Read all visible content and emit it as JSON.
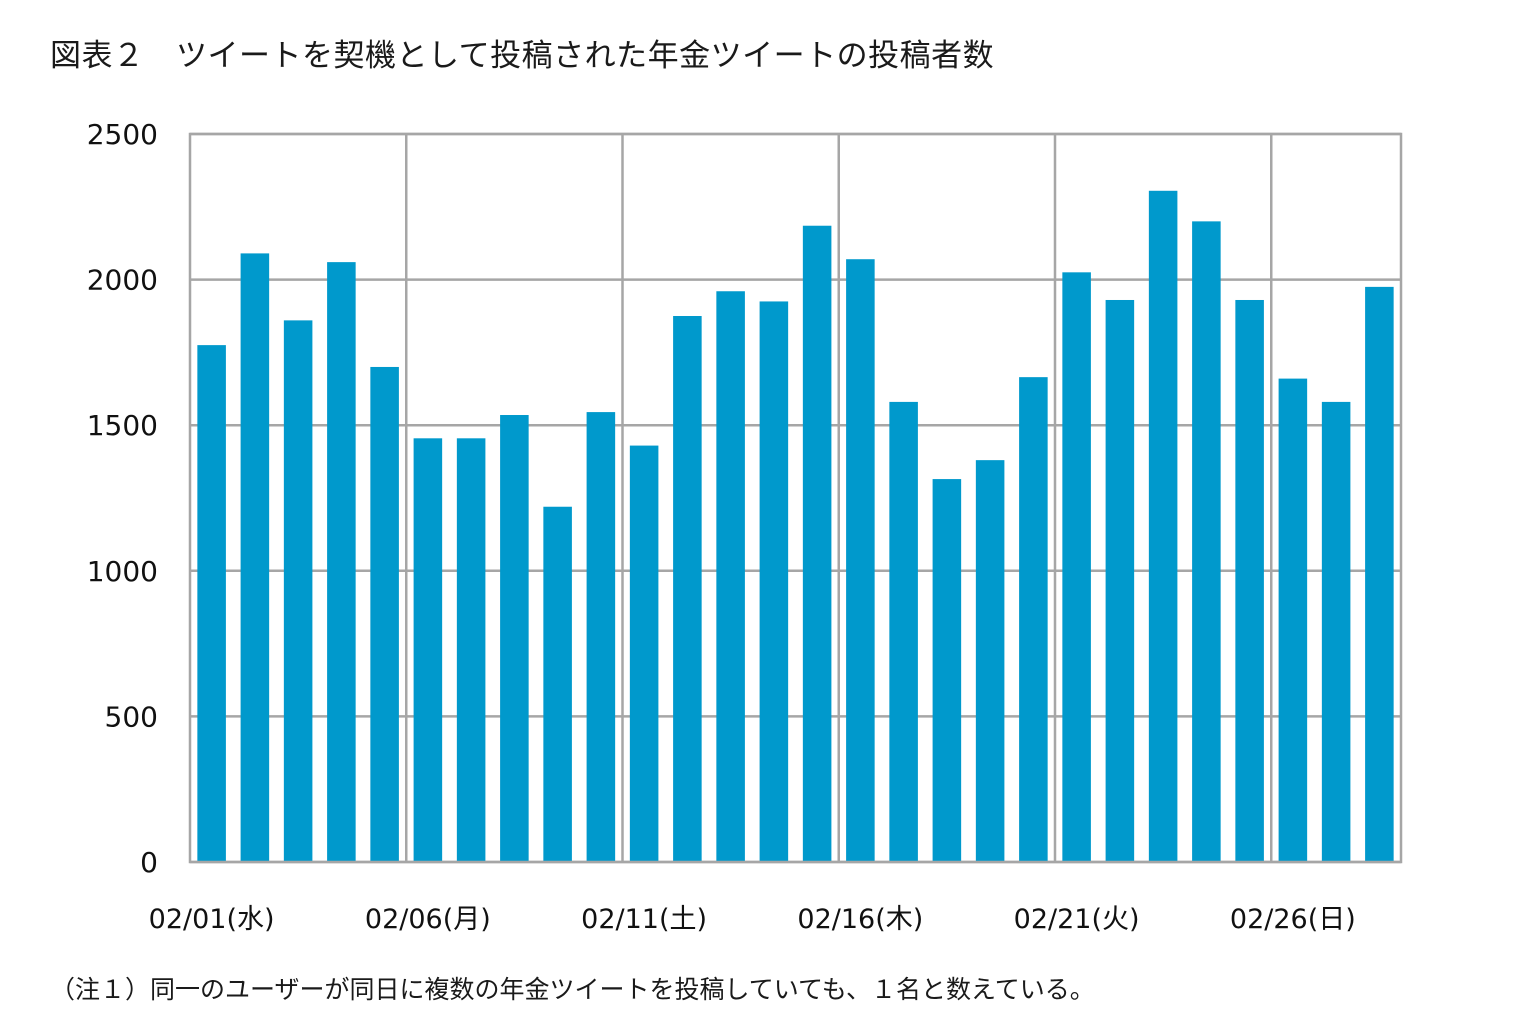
{
  "title": "図表２　ツイートを契機として投稿された年金ツイートの投稿者数",
  "note": "（注１）同一のユーザーが同日に複数の年金ツイートを投稿していても、１名と数えている。",
  "colors": {
    "bar": "#0099CC",
    "grid": "#A6A6A6"
  },
  "chart_data": {
    "type": "bar",
    "title": "図表２　ツイートを契機として投稿された年金ツイートの投稿者数",
    "xlabel": "",
    "ylabel": "",
    "ylim": [
      0,
      2500
    ],
    "yticks": [
      0,
      500,
      1000,
      1500,
      2000,
      2500
    ],
    "grid": true,
    "categories": [
      "02/01",
      "02/02",
      "02/03",
      "02/04",
      "02/05",
      "02/06",
      "02/07",
      "02/08",
      "02/09",
      "02/10",
      "02/11",
      "02/12",
      "02/13",
      "02/14",
      "02/15",
      "02/16",
      "02/17",
      "02/18",
      "02/19",
      "02/20",
      "02/21",
      "02/22",
      "02/23",
      "02/24",
      "02/25",
      "02/26",
      "02/27",
      "02/28"
    ],
    "x_tick_labels": [
      {
        "index": 0,
        "label": "02/01(水)"
      },
      {
        "index": 5,
        "label": "02/06(月)"
      },
      {
        "index": 10,
        "label": "02/11(土)"
      },
      {
        "index": 15,
        "label": "02/16(木)"
      },
      {
        "index": 20,
        "label": "02/21(火)"
      },
      {
        "index": 25,
        "label": "02/26(日)"
      }
    ],
    "values": [
      1775,
      2090,
      1860,
      2060,
      1700,
      1455,
      1455,
      1535,
      1220,
      1545,
      1430,
      1875,
      1960,
      1925,
      2185,
      2070,
      1580,
      1315,
      1380,
      1665,
      2025,
      1930,
      2305,
      2200,
      1930,
      1660,
      1580,
      1975
    ]
  }
}
